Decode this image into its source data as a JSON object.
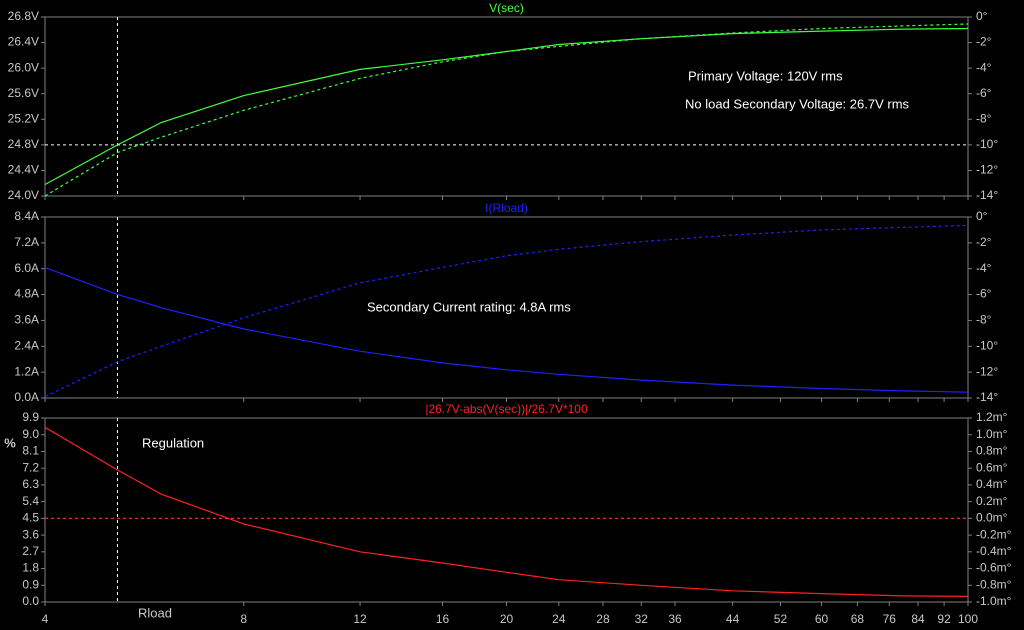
{
  "chart_data": [
    {
      "type": "line",
      "title": "V(sec)",
      "xscale": "log",
      "x": [
        4,
        5.15,
        6,
        8,
        12,
        16,
        20,
        24,
        32,
        44,
        60,
        80,
        100
      ],
      "xlim": [
        4,
        100
      ],
      "xticks": [
        4,
        8,
        12,
        16,
        20,
        24,
        28,
        32,
        36,
        44,
        52,
        60,
        68,
        76,
        84,
        92,
        100
      ],
      "ylim": [
        24,
        26.8
      ],
      "yticks": [
        {
          "value": 24,
          "label": "24.0V"
        },
        {
          "value": 24.4,
          "label": "24.4V"
        },
        {
          "value": 24.8,
          "label": "24.8V"
        },
        {
          "value": 25.2,
          "label": "25.2V"
        },
        {
          "value": 25.6,
          "label": "25.6V"
        },
        {
          "value": 26,
          "label": "26.0V"
        },
        {
          "value": 26.4,
          "label": "26.4V"
        },
        {
          "value": 26.8,
          "label": "26.8V"
        }
      ],
      "y2lim": [
        -14,
        0
      ],
      "y2ticks": [
        {
          "value": 0,
          "label": "0°"
        },
        {
          "value": -2,
          "label": "-2°"
        },
        {
          "value": -4,
          "label": "-4°"
        },
        {
          "value": -6,
          "label": "-6°"
        },
        {
          "value": -8,
          "label": "-8°"
        },
        {
          "value": -10,
          "label": "-10°"
        },
        {
          "value": -12,
          "label": "-12°"
        },
        {
          "value": -14,
          "label": "-14°"
        }
      ],
      "series": [
        {
          "color": "#40ff40",
          "style": "solid",
          "values": [
            24.18,
            24.8,
            25.15,
            25.57,
            25.98,
            26.13,
            26.26,
            26.37,
            26.46,
            26.54,
            26.58,
            26.61,
            26.62
          ]
        },
        {
          "color": "#40ff40",
          "style": "dashed",
          "axis": "y2",
          "values": [
            -14,
            -10.6,
            -9.4,
            -7.3,
            -4.8,
            -3.5,
            -2.7,
            -2.3,
            -1.7,
            -1.25,
            -0.9,
            -0.7,
            -0.55
          ]
        }
      ],
      "cursor": {
        "x": 5.15,
        "y": 24.8
      },
      "annotations": [
        "Primary Voltage: 120V rms",
        "No load Secondary Voltage: 26.7V rms"
      ]
    },
    {
      "type": "line",
      "title": "I(Rload)",
      "xscale": "log",
      "x": [
        4,
        5.15,
        6,
        8,
        12,
        16,
        20,
        24,
        32,
        44,
        60,
        80,
        100
      ],
      "xlim": [
        4,
        100
      ],
      "xticks": [
        4,
        8,
        12,
        16,
        20,
        24,
        28,
        32,
        36,
        44,
        52,
        60,
        68,
        76,
        84,
        92,
        100
      ],
      "ylim": [
        0,
        8.4
      ],
      "yticks": [
        {
          "value": 0,
          "label": "0.0A"
        },
        {
          "value": 1.2,
          "label": "1.2A"
        },
        {
          "value": 2.4,
          "label": "2.4A"
        },
        {
          "value": 3.6,
          "label": "3.6A"
        },
        {
          "value": 4.8,
          "label": "4.8A"
        },
        {
          "value": 6,
          "label": "6.0A"
        },
        {
          "value": 7.2,
          "label": "7.2A"
        },
        {
          "value": 8.4,
          "label": "8.4A"
        }
      ],
      "y2lim": [
        -14,
        0
      ],
      "y2ticks": [
        {
          "value": 0,
          "label": "0°"
        },
        {
          "value": -2,
          "label": "-2°"
        },
        {
          "value": -4,
          "label": "-4°"
        },
        {
          "value": -6,
          "label": "-6°"
        },
        {
          "value": -8,
          "label": "-8°"
        },
        {
          "value": -10,
          "label": "-10°"
        },
        {
          "value": -12,
          "label": "-12°"
        },
        {
          "value": -14,
          "label": "-14°"
        }
      ],
      "series": [
        {
          "color": "#2020ff",
          "style": "solid",
          "values": [
            6.05,
            4.81,
            4.19,
            3.2,
            2.17,
            1.63,
            1.31,
            1.1,
            0.83,
            0.6,
            0.44,
            0.33,
            0.27
          ]
        },
        {
          "color": "#2020ff",
          "style": "dashed",
          "axis": "y2",
          "values": [
            -13.9,
            -11.2,
            -10,
            -7.8,
            -5.1,
            -3.9,
            -3,
            -2.5,
            -1.9,
            -1.4,
            -1,
            -0.8,
            -0.65
          ]
        }
      ],
      "cursor": {
        "x": 5.15
      },
      "annotations": [
        "Secondary Current rating: 4.8A rms"
      ]
    },
    {
      "type": "line",
      "title": "|26.7V-abs(V(sec))|/26.7V*100",
      "xscale": "log",
      "xlabel": "Rload",
      "ylabel": "%",
      "x": [
        4,
        5.15,
        6,
        8,
        12,
        16,
        20,
        24,
        32,
        44,
        60,
        80,
        100
      ],
      "xlim": [
        4,
        100
      ],
      "xticks": [
        4,
        8,
        12,
        16,
        20,
        24,
        28,
        32,
        36,
        44,
        52,
        60,
        68,
        76,
        84,
        92,
        100
      ],
      "ylim": [
        0,
        9.9
      ],
      "yticks": [
        {
          "value": 0,
          "label": "0.0"
        },
        {
          "value": 0.9,
          "label": "0.9"
        },
        {
          "value": 1.8,
          "label": "1.8"
        },
        {
          "value": 2.7,
          "label": "2.7"
        },
        {
          "value": 3.6,
          "label": "3.6"
        },
        {
          "value": 4.5,
          "label": "4.5"
        },
        {
          "value": 5.4,
          "label": "5.4"
        },
        {
          "value": 6.3,
          "label": "6.3"
        },
        {
          "value": 7.2,
          "label": "7.2"
        },
        {
          "value": 8.1,
          "label": "8.1"
        },
        {
          "value": 9,
          "label": "9.0"
        },
        {
          "value": 9.9,
          "label": "9.9"
        }
      ],
      "y2lim": [
        -1,
        1.2
      ],
      "y2ticks": [
        {
          "value": 1.2,
          "label": "1.2m°"
        },
        {
          "value": 1,
          "label": "1.0m°"
        },
        {
          "value": 0.8,
          "label": "0.8m°"
        },
        {
          "value": 0.6,
          "label": "0.6m°"
        },
        {
          "value": 0.4,
          "label": "0.4m°"
        },
        {
          "value": 0.2,
          "label": "0.2m°"
        },
        {
          "value": 0,
          "label": "0.0m°"
        },
        {
          "value": -0.2,
          "label": "-0.2m°"
        },
        {
          "value": -0.4,
          "label": "-0.4m°"
        },
        {
          "value": -0.6,
          "label": "-0.6m°"
        },
        {
          "value": -0.8,
          "label": "-0.8m°"
        },
        {
          "value": -1,
          "label": "-1.0m°"
        }
      ],
      "series": [
        {
          "color": "#ff2020",
          "style": "solid",
          "values": [
            9.4,
            7.1,
            5.8,
            4.2,
            2.7,
            2.1,
            1.6,
            1.2,
            0.9,
            0.6,
            0.45,
            0.33,
            0.3
          ]
        },
        {
          "color": "#ff2020",
          "style": "dashed",
          "axis": "y2",
          "values": [
            0,
            0,
            0,
            0,
            0,
            0,
            0,
            0,
            0,
            0,
            0,
            0,
            0
          ]
        }
      ],
      "cursor": {
        "x": 5.15
      },
      "annotations": [
        "Regulation"
      ]
    }
  ]
}
